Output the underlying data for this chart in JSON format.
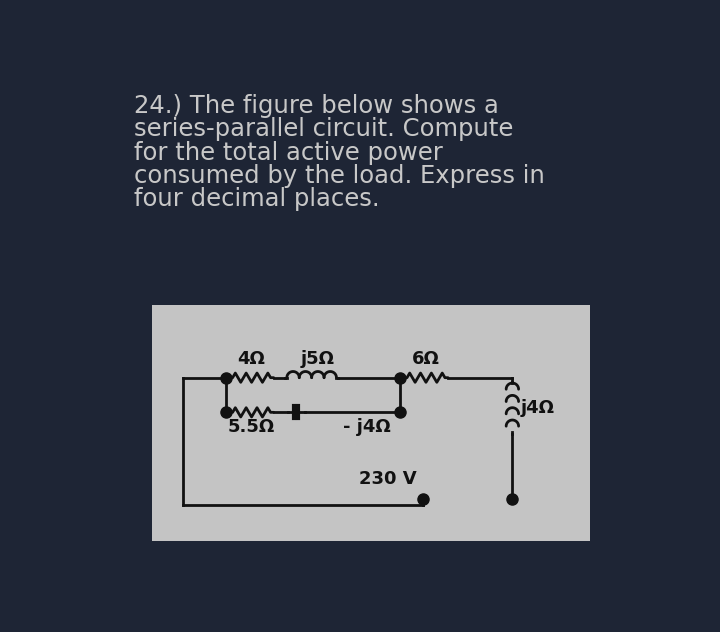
{
  "bg_outer": "#1e2535",
  "bg_panel": "#c4c4c4",
  "text_color": "#c8c8c8",
  "circuit_color": "#111111",
  "title_lines": [
    "24.) The figure below shows a",
    "series-parallel circuit. Compute",
    "for the total active power",
    "consumed by the load. Express in",
    "four decimal places."
  ],
  "title_fontsize": 17.5,
  "labels": {
    "R1": "4Ω",
    "L1": "j5Ω",
    "R2": "6Ω",
    "R3": "5.5Ω",
    "C1": "- j4Ω",
    "L2": "j4Ω",
    "V": "230 V"
  }
}
